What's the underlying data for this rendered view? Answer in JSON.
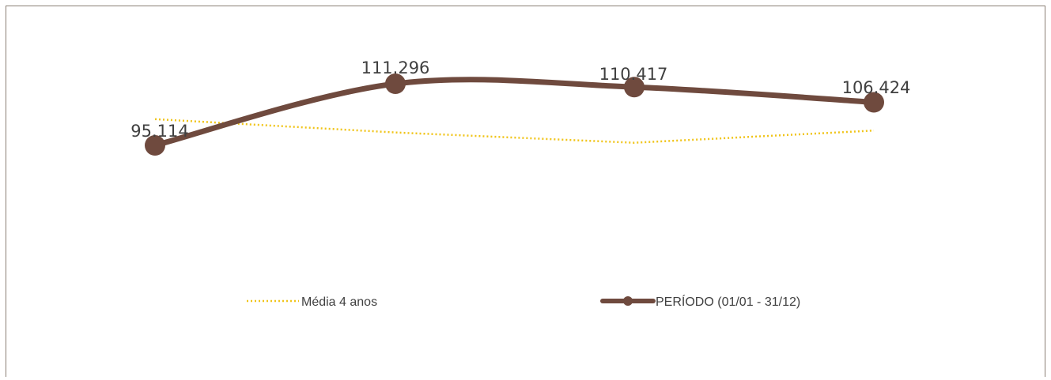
{
  "chart_data": {
    "type": "line",
    "categories": [
      "",
      "",
      "",
      ""
    ],
    "series": [
      {
        "name": "PERÍODO (01/01 - 31/12)",
        "values": [
          95114,
          111296,
          110417,
          106424
        ],
        "labels": [
          "95.114",
          "111.296",
          "110.417",
          "106.424"
        ],
        "color": "#6f4a3e",
        "style": "solid-smooth-markers"
      },
      {
        "name": "Média 4 anos",
        "values": [
          102000,
          98500,
          95800,
          99000
        ],
        "color": "#f0c419",
        "style": "dotted"
      }
    ],
    "ylim": [
      70000,
      125000
    ],
    "grid": false,
    "legend": "bottom",
    "title": "",
    "xlabel": "",
    "ylabel": ""
  }
}
